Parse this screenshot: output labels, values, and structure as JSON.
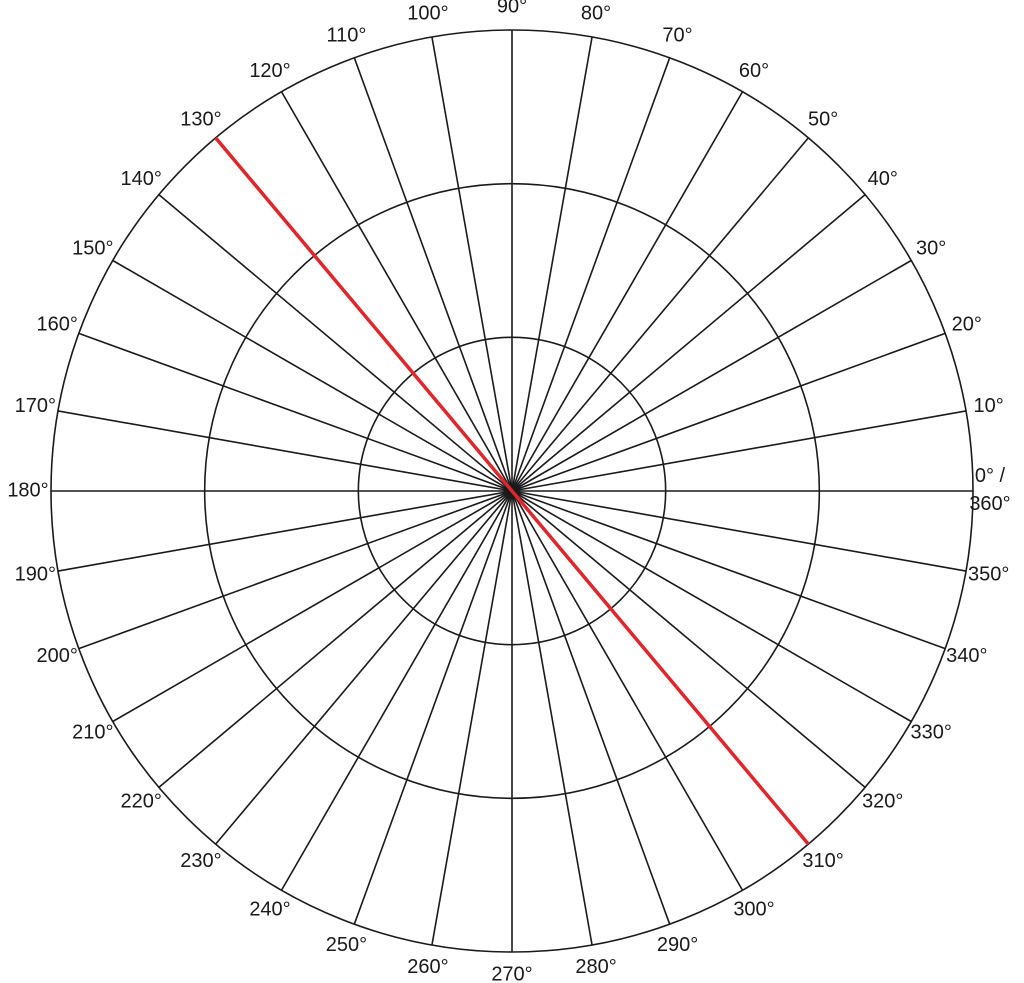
{
  "chart_data": {
    "type": "polar",
    "angle_ticks": [
      {
        "value": 0,
        "label": [
          "0° /",
          "360°"
        ]
      },
      {
        "value": 10,
        "label": "10°"
      },
      {
        "value": 20,
        "label": "20°"
      },
      {
        "value": 30,
        "label": "30°"
      },
      {
        "value": 40,
        "label": "40°"
      },
      {
        "value": 50,
        "label": "50°"
      },
      {
        "value": 60,
        "label": "60°"
      },
      {
        "value": 70,
        "label": "70°"
      },
      {
        "value": 80,
        "label": "80°"
      },
      {
        "value": 90,
        "label": "90°"
      },
      {
        "value": 100,
        "label": "100°"
      },
      {
        "value": 110,
        "label": "110°"
      },
      {
        "value": 120,
        "label": "120°"
      },
      {
        "value": 130,
        "label": "130°"
      },
      {
        "value": 140,
        "label": "140°"
      },
      {
        "value": 150,
        "label": "150°"
      },
      {
        "value": 160,
        "label": "160°"
      },
      {
        "value": 170,
        "label": "170°"
      },
      {
        "value": 180,
        "label": "180°"
      },
      {
        "value": 190,
        "label": "190°"
      },
      {
        "value": 200,
        "label": "200°"
      },
      {
        "value": 210,
        "label": "210°"
      },
      {
        "value": 220,
        "label": "220°"
      },
      {
        "value": 230,
        "label": "230°"
      },
      {
        "value": 240,
        "label": "240°"
      },
      {
        "value": 250,
        "label": "250°"
      },
      {
        "value": 260,
        "label": "260°"
      },
      {
        "value": 270,
        "label": "270°"
      },
      {
        "value": 280,
        "label": "280°"
      },
      {
        "value": 290,
        "label": "290°"
      },
      {
        "value": 300,
        "label": "300°"
      },
      {
        "value": 310,
        "label": "310°"
      },
      {
        "value": 320,
        "label": "320°"
      },
      {
        "value": 330,
        "label": "330°"
      },
      {
        "value": 340,
        "label": "340°"
      },
      {
        "value": 350,
        "label": "350°"
      }
    ],
    "line": {
      "color": "#e0262b",
      "angles": [
        130,
        310
      ]
    }
  }
}
